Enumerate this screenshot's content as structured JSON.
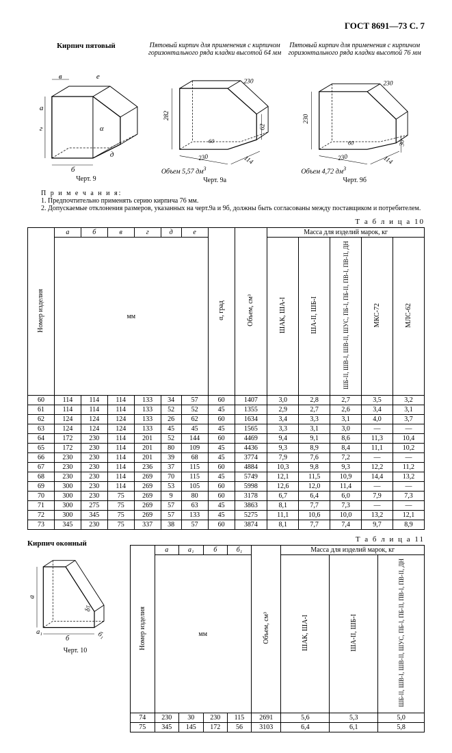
{
  "page_header": "ГОСТ 8691—73 С. 7",
  "figures": {
    "f9": {
      "title": "Кирпич пятовый",
      "caption": "Черт. 9"
    },
    "f9a": {
      "title": "Пятовый кирпич для применения с кирпичом горизонтального ряда кладки высотой 64 мм",
      "volume": "Объем 5,57 дм",
      "caption": "Черт. 9а"
    },
    "f9b": {
      "title": "Пятовый кирпич для применения с кирпичом горизонтального ряда кладки высотой 76 мм",
      "volume": "Объем 4,72 дм",
      "caption": "Черт. 9б"
    }
  },
  "notes": {
    "head": "П р и м е ч а н и я:",
    "n1": "1. Предпочтительно применять серию кирпича 76 мм.",
    "n2": "2. Допускаемые отклонения размеров, указанных на черт.9а и 9б, должны быть согласованы между поставщиком и потребителем."
  },
  "table10": {
    "label": "Т а б л и ц а  10",
    "cols_letters": [
      "а",
      "б",
      "в",
      "г",
      "д",
      "е"
    ],
    "mm": "мм",
    "num": "Номер изделия",
    "alpha": "α, град",
    "vol": "Объем, см³",
    "mass_head": "Масса для изделий марок, кг",
    "mass_cols": [
      "ШАК, ША-I",
      "ША-II, ШБ-I",
      "ШБ-II, ШВ-I, ШВ-II, ШУС, ПБ-I, ПБ-II, ПВ-I, ПВ-II, ДН",
      "МКС-72",
      "МЛС-62"
    ],
    "rows": [
      [
        "60",
        "114",
        "114",
        "114",
        "133",
        "34",
        "57",
        "60",
        "1407",
        "3,0",
        "2,8",
        "2,7",
        "3,5",
        "3,2"
      ],
      [
        "61",
        "114",
        "114",
        "114",
        "133",
        "52",
        "52",
        "45",
        "1355",
        "2,9",
        "2,7",
        "2,6",
        "3,4",
        "3,1"
      ],
      [
        "62",
        "124",
        "124",
        "124",
        "133",
        "26",
        "62",
        "60",
        "1634",
        "3,4",
        "3,3",
        "3,1",
        "4,0",
        "3,7"
      ],
      [
        "63",
        "124",
        "124",
        "124",
        "133",
        "45",
        "45",
        "45",
        "1565",
        "3,3",
        "3,1",
        "3,0",
        "—",
        "—"
      ],
      [
        "64",
        "172",
        "230",
        "114",
        "201",
        "52",
        "144",
        "60",
        "4469",
        "9,4",
        "9,1",
        "8,6",
        "11,3",
        "10,4"
      ],
      [
        "65",
        "172",
        "230",
        "114",
        "201",
        "80",
        "109",
        "45",
        "4436",
        "9,3",
        "8,9",
        "8,4",
        "11,1",
        "10,2"
      ],
      [
        "66",
        "230",
        "230",
        "114",
        "201",
        "39",
        "68",
        "45",
        "3774",
        "7,9",
        "7,6",
        "7,2",
        "—",
        "—"
      ],
      [
        "67",
        "230",
        "230",
        "114",
        "236",
        "37",
        "115",
        "60",
        "4884",
        "10,3",
        "9,8",
        "9,3",
        "12,2",
        "11,2"
      ],
      [
        "68",
        "230",
        "230",
        "114",
        "269",
        "70",
        "115",
        "45",
        "5749",
        "12,1",
        "11,5",
        "10,9",
        "14,4",
        "13,2"
      ],
      [
        "69",
        "300",
        "230",
        "114",
        "269",
        "53",
        "105",
        "60",
        "5998",
        "12,6",
        "12,0",
        "11,4",
        "—",
        "—"
      ],
      [
        "70",
        "300",
        "230",
        "75",
        "269",
        "9",
        "80",
        "60",
        "3178",
        "6,7",
        "6,4",
        "6,0",
        "7,9",
        "7,3"
      ],
      [
        "71",
        "300",
        "275",
        "75",
        "269",
        "57",
        "63",
        "45",
        "3863",
        "8,1",
        "7,7",
        "7,3",
        "—",
        "—"
      ],
      [
        "72",
        "300",
        "345",
        "75",
        "269",
        "57",
        "133",
        "45",
        "5275",
        "11,1",
        "10,6",
        "10,0",
        "13,2",
        "12,1"
      ],
      [
        "73",
        "345",
        "230",
        "75",
        "337",
        "38",
        "57",
        "60",
        "3874",
        "8,1",
        "7,7",
        "7,4",
        "9,7",
        "8,9"
      ]
    ]
  },
  "section2_title": "Кирпич оконный",
  "fig10_caption": "Черт. 10",
  "table11": {
    "label": "Т а б л и ц а  11",
    "cols_letters": [
      "а",
      "а₁",
      "б",
      "б₁"
    ],
    "mm": "мм",
    "num": "Номер изделия",
    "vol": "Объем, см³",
    "mass_head": "Масса для изделий марок, кг",
    "mass_cols": [
      "ШАК, ША-I",
      "ША-II, ШБ-I",
      "ШБ-II, ШВ-I, ШВ-II, ШУС, ПБ-I, ПБ-II, ПВ-I, ПВ-II, ДН"
    ],
    "rows": [
      [
        "74",
        "230",
        "30",
        "230",
        "115",
        "2691",
        "5,6",
        "5,3",
        "5,0"
      ],
      [
        "75",
        "345",
        "145",
        "172",
        "56",
        "3103",
        "6,4",
        "6,1",
        "5,8"
      ]
    ]
  }
}
